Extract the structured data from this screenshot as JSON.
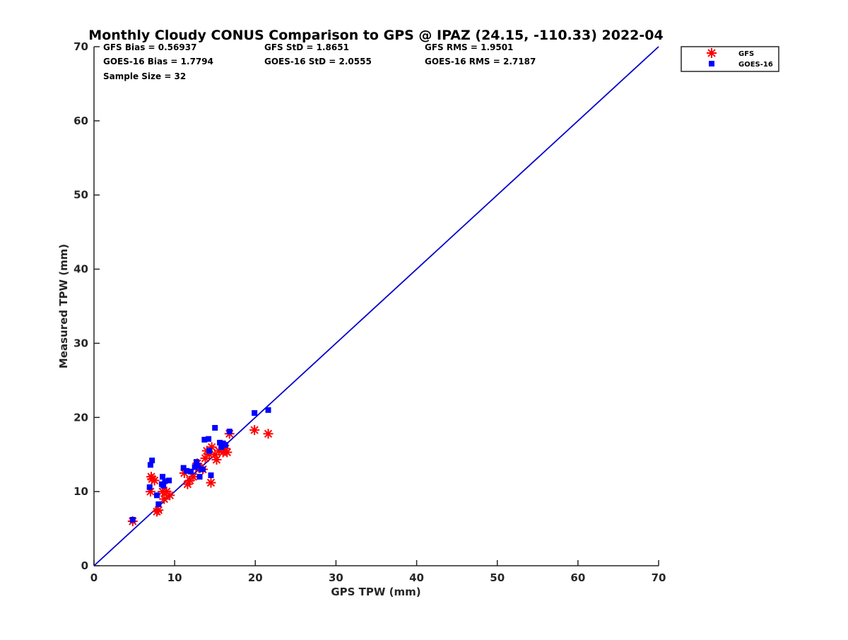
{
  "chart_data": {
    "type": "scatter",
    "title": "Monthly Cloudy CONUS Comparison to GPS @ IPAZ (24.15, -110.33) 2022-04",
    "xlabel": "GPS TPW (mm)",
    "ylabel": "Measured TPW (mm)",
    "xlim": [
      0,
      70
    ],
    "ylim": [
      0,
      70
    ],
    "xticks": [
      "0",
      "10",
      "20",
      "30",
      "40",
      "50",
      "60",
      "70"
    ],
    "yticks": [
      "0",
      "10",
      "20",
      "30",
      "40",
      "50",
      "60",
      "70"
    ],
    "grid": false,
    "legend_position": "outside top-right",
    "stats": {
      "gfs_bias": "GFS Bias = 0.56937",
      "gfs_std": "GFS StD = 1.8651",
      "gfs_rms": "GFS RMS = 1.9501",
      "goes_bias": "GOES-16 Bias = 1.7794",
      "goes_std": "GOES-16 StD = 2.0555",
      "goes_rms": "GOES-16 RMS = 2.7187",
      "sample_size": "Sample Size = 32"
    },
    "reference_line": {
      "name": "1:1 line",
      "x": [
        0,
        70
      ],
      "y": [
        0,
        70
      ],
      "color": "#0000cc"
    },
    "series": [
      {
        "name": "GFS",
        "marker": "asterisk",
        "color": "#ff0000",
        "x": [
          4.8,
          7.0,
          7.1,
          7.2,
          7.5,
          7.8,
          8.0,
          8.5,
          8.7,
          9.0,
          9.4,
          11.2,
          11.6,
          11.9,
          12.3,
          12.8,
          13.0,
          13.5,
          13.8,
          14.0,
          14.3,
          14.5,
          14.6,
          15.0,
          15.2,
          15.5,
          16.0,
          16.3,
          16.5,
          16.8,
          19.9,
          21.6
        ],
        "y": [
          6.0,
          10.0,
          12.0,
          11.7,
          11.5,
          7.3,
          7.5,
          10.0,
          9.0,
          10.0,
          9.5,
          12.5,
          11.0,
          11.5,
          12.0,
          13.8,
          13.2,
          13.0,
          14.5,
          15.5,
          15.0,
          11.2,
          16.0,
          15.0,
          14.3,
          15.5,
          15.3,
          15.8,
          15.3,
          17.8,
          18.3,
          17.8
        ]
      },
      {
        "name": "GOES-16",
        "marker": "square",
        "color": "#0000ff",
        "x": [
          4.8,
          6.9,
          7.0,
          7.2,
          7.8,
          8.0,
          8.5,
          8.6,
          8.8,
          9.3,
          11.1,
          11.5,
          12.0,
          12.5,
          12.7,
          12.9,
          13.1,
          13.5,
          13.7,
          14.2,
          14.3,
          14.5,
          15.0,
          15.6,
          16.0,
          16.3,
          16.8,
          19.9,
          21.6,
          13.3,
          8.4,
          15.8
        ],
        "y": [
          6.2,
          10.6,
          13.6,
          14.2,
          9.5,
          8.3,
          12.0,
          10.8,
          11.4,
          11.5,
          13.2,
          12.8,
          12.7,
          13.3,
          14.0,
          13.5,
          12.0,
          13.0,
          17.0,
          17.1,
          15.5,
          12.2,
          18.6,
          16.6,
          16.5,
          16.3,
          18.1,
          20.6,
          21.0,
          13.0,
          11.0,
          16.0
        ]
      }
    ]
  }
}
